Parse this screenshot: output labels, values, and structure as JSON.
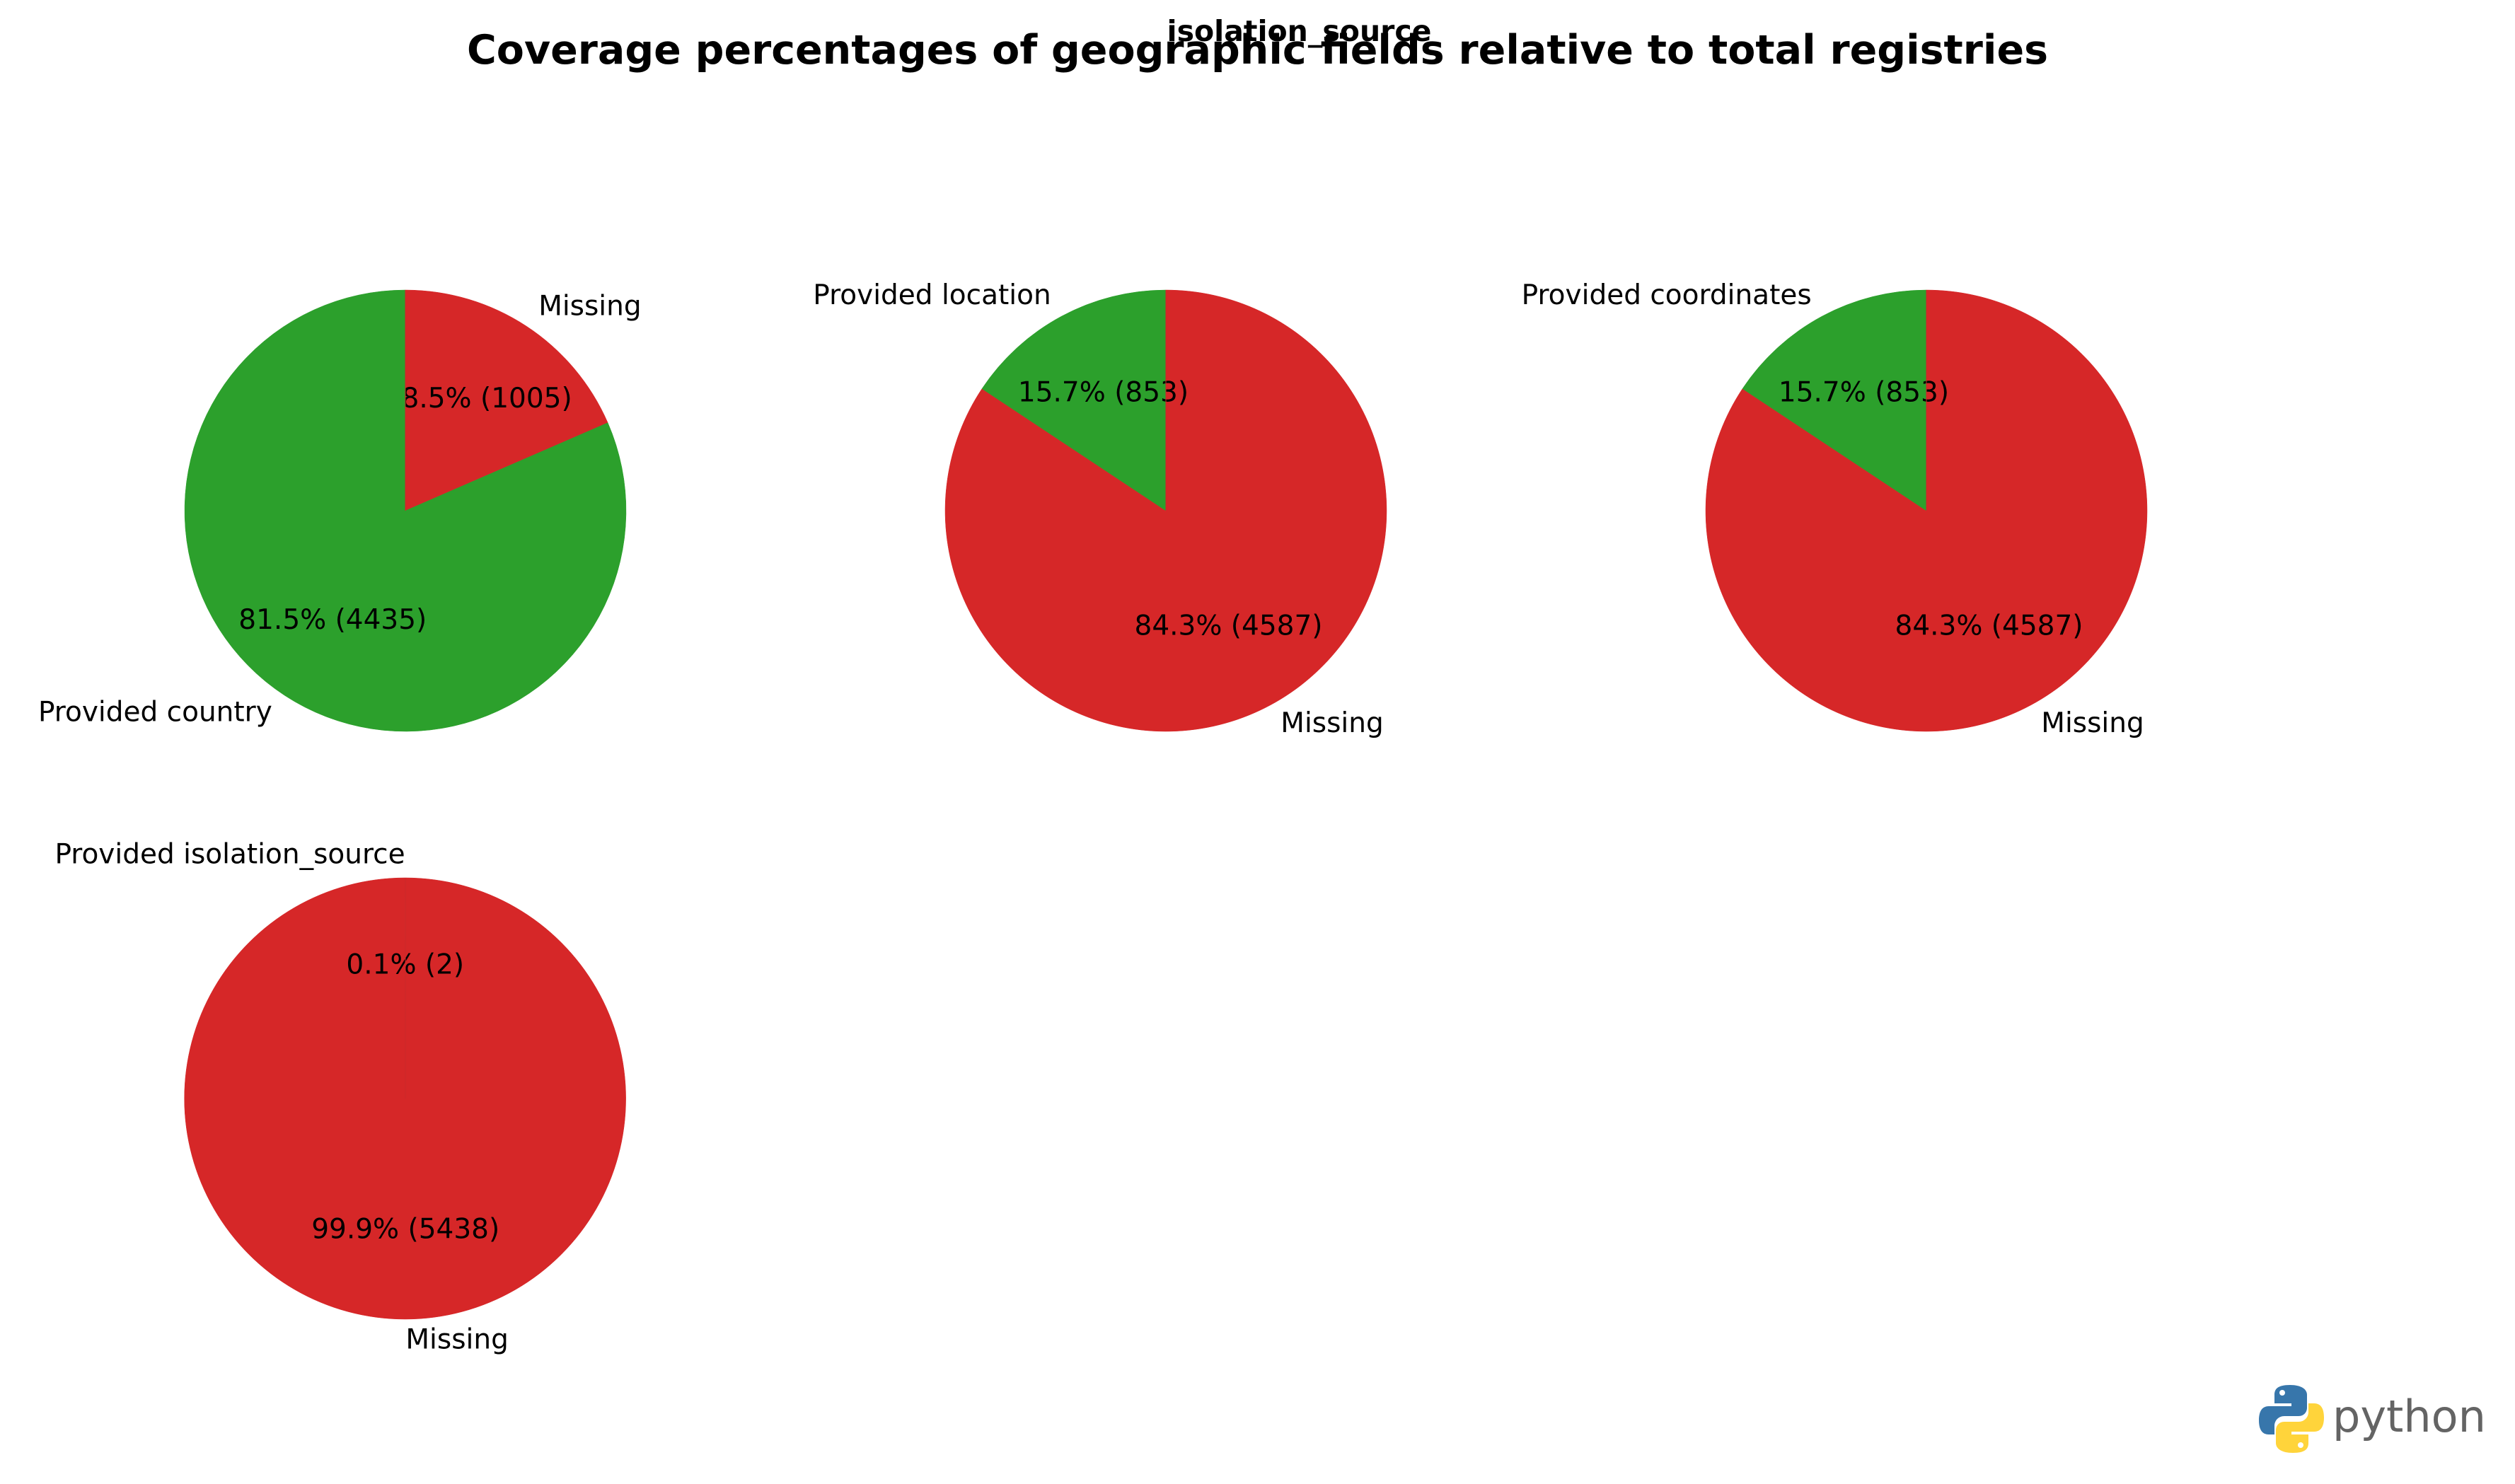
{
  "figure": {
    "title": "Coverage percentages of geographic fields relative to total registries",
    "overlay_title": "isolation_source",
    "watermark": "python"
  },
  "colors": {
    "provided": "#2ca02c",
    "missing": "#d62728"
  },
  "chart_data": [
    {
      "type": "pie",
      "field": "country",
      "start_angle_deg": 90,
      "counterclock": false,
      "slices": [
        {
          "label": "Missing",
          "value": 1005,
          "percent_label": "18.5% (1005)",
          "color": "#d62728"
        },
        {
          "label": "Provided country",
          "value": 4435,
          "percent_label": "81.5% (4435)",
          "color": "#2ca02c"
        }
      ]
    },
    {
      "type": "pie",
      "field": "location",
      "start_angle_deg": 90,
      "counterclock": false,
      "slices": [
        {
          "label": "Missing",
          "value": 4587,
          "percent_label": "84.3% (4587)",
          "color": "#d62728"
        },
        {
          "label": "Provided location",
          "value": 853,
          "percent_label": "15.7% (853)",
          "color": "#2ca02c"
        }
      ]
    },
    {
      "type": "pie",
      "field": "coordinates",
      "start_angle_deg": 90,
      "counterclock": false,
      "slices": [
        {
          "label": "Missing",
          "value": 4587,
          "percent_label": "84.3% (4587)",
          "color": "#d62728"
        },
        {
          "label": "Provided coordinates",
          "value": 853,
          "percent_label": "15.7% (853)",
          "color": "#2ca02c"
        }
      ]
    },
    {
      "type": "pie",
      "field": "isolation_source",
      "start_angle_deg": 90,
      "counterclock": false,
      "slices": [
        {
          "label": "Missing",
          "value": 5438,
          "percent_label": "99.9% (5438)",
          "color": "#d62728"
        },
        {
          "label": "Provided isolation_source",
          "value": 2,
          "percent_label": "0.1% (2)",
          "color": "#d62728"
        }
      ]
    }
  ]
}
